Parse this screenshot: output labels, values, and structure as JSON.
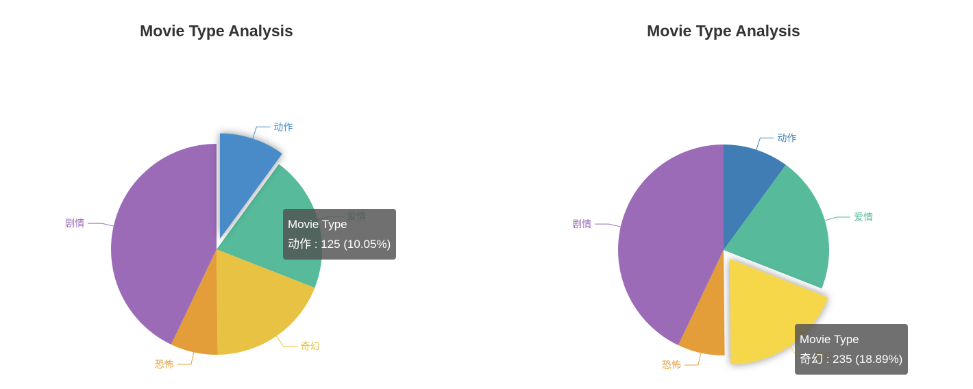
{
  "chart_data": [
    {
      "type": "pie",
      "title": "Movie Type Analysis",
      "series_name": "Movie Type",
      "slices": [
        {
          "label": "动作",
          "value": 125,
          "percent": 10.05,
          "color": "#4a8bc8"
        },
        {
          "label": "爱情",
          "value": 260,
          "percent": 20.9,
          "color": "#56ba9b"
        },
        {
          "label": "奇幻",
          "value": 235,
          "percent": 18.89,
          "color": "#e8c242"
        },
        {
          "label": "恐怖",
          "value": 90,
          "percent": 7.23,
          "color": "#e49e39"
        },
        {
          "label": "剧情",
          "value": 534,
          "percent": 42.93,
          "color": "#9b6bb8"
        }
      ],
      "highlighted": "动作",
      "tooltip": {
        "title": "Movie Type",
        "text": "动作 : 125 (10.05%)"
      }
    },
    {
      "type": "pie",
      "title": "Movie Type Analysis",
      "series_name": "Movie Type",
      "slices": [
        {
          "label": "动作",
          "value": 125,
          "percent": 10.05,
          "color": "#3f7db4"
        },
        {
          "label": "爱情",
          "value": 260,
          "percent": 20.9,
          "color": "#56ba9b"
        },
        {
          "label": "奇幻",
          "value": 235,
          "percent": 18.89,
          "color": "#f6d748"
        },
        {
          "label": "恐怖",
          "value": 90,
          "percent": 7.23,
          "color": "#e49e39"
        },
        {
          "label": "剧情",
          "value": 534,
          "percent": 42.93,
          "color": "#9b6bb8"
        }
      ],
      "highlighted": "奇幻",
      "tooltip": {
        "title": "Movie Type",
        "text": "奇幻 : 235 (18.89%)"
      }
    }
  ]
}
